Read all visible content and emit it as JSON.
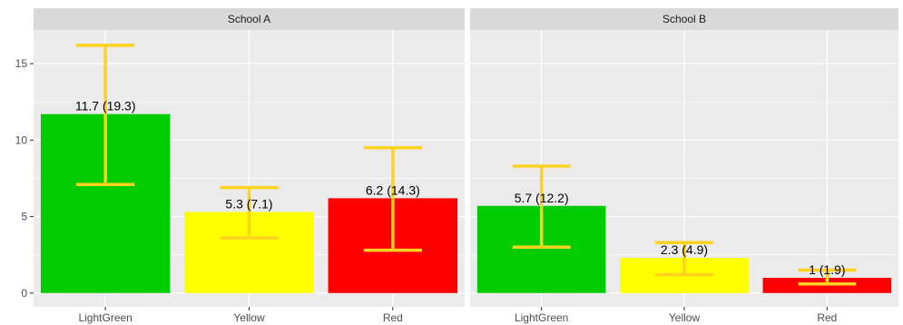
{
  "chart_data": {
    "type": "bar",
    "facet_by": "school",
    "ylim": [
      -0.9,
      17.2
    ],
    "y_ticks": [
      0,
      5,
      10,
      15
    ],
    "categories": [
      "LightGreen",
      "Yellow",
      "Red"
    ],
    "colors": {
      "LightGreen": "#00cc00",
      "Yellow": "#ffff00",
      "Red": "#ff0000",
      "error_bar": "#ffd21f",
      "panel_bg": "#ebebeb",
      "strip_bg": "#d9d9d9",
      "grid": "#ffffff"
    },
    "grid": true,
    "panels": [
      {
        "title": "School A",
        "bars": [
          {
            "category": "LightGreen",
            "value": 11.7,
            "err_low": 7.1,
            "err_high": 16.2,
            "label": "11.7 (19.3)"
          },
          {
            "category": "Yellow",
            "value": 5.3,
            "err_low": 3.6,
            "err_high": 6.9,
            "label": "5.3 (7.1)"
          },
          {
            "category": "Red",
            "value": 6.2,
            "err_low": 2.8,
            "err_high": 9.5,
            "label": "6.2 (14.3)"
          }
        ]
      },
      {
        "title": "School B",
        "bars": [
          {
            "category": "LightGreen",
            "value": 5.7,
            "err_low": 3.0,
            "err_high": 8.3,
            "label": "5.7 (12.2)"
          },
          {
            "category": "Yellow",
            "value": 2.3,
            "err_low": 1.2,
            "err_high": 3.3,
            "label": "2.3 (4.9)"
          },
          {
            "category": "Red",
            "value": 1.0,
            "err_low": 0.6,
            "err_high": 1.5,
            "label": "1 (1.9)"
          }
        ]
      }
    ]
  }
}
